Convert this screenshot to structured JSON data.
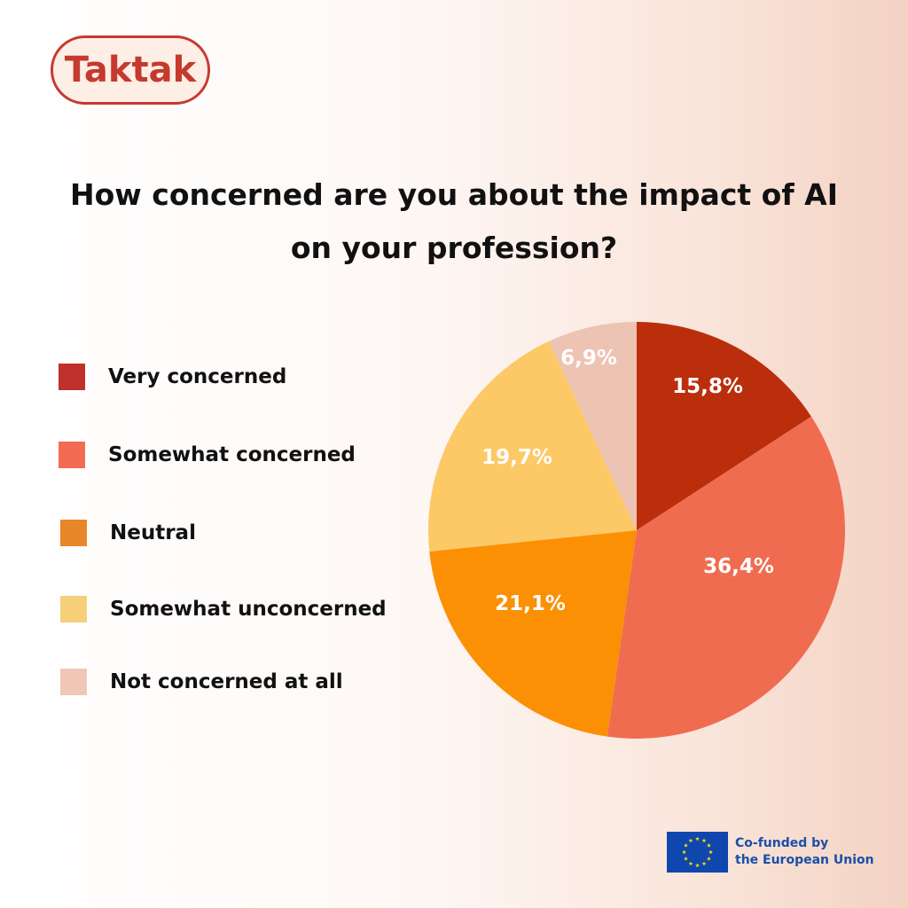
{
  "brand": {
    "logo_text": "Taktak"
  },
  "title": "How concerned are you about the impact of AI on your profession?",
  "chart_data": {
    "type": "pie",
    "title": "How concerned are you about the impact of AI on your profession?",
    "categories": [
      "Very concerned",
      "Somewhat concerned",
      "Neutral",
      "Somewhat unconcerned",
      "Not concerned at all"
    ],
    "values": [
      15.8,
      36.4,
      21.1,
      19.7,
      6.9
    ],
    "value_labels": [
      "15,8%",
      "36,4%",
      "21,1%",
      "19,7%",
      "6,9%"
    ],
    "legend_colors": [
      "#c0312c",
      "#f26b52",
      "#e8862a",
      "#f6cf7a",
      "#f0c6b7"
    ],
    "slice_colors": [
      "#bb2e0c",
      "#f06c51",
      "#fb9005",
      "#fcc966",
      "#edc3b3"
    ],
    "legend_position": "left",
    "start": "top, clockwise"
  },
  "footer": {
    "eu_line1": "Co-funded by",
    "eu_line2": "the European Union",
    "flag_icon": "eu-flag-icon"
  }
}
